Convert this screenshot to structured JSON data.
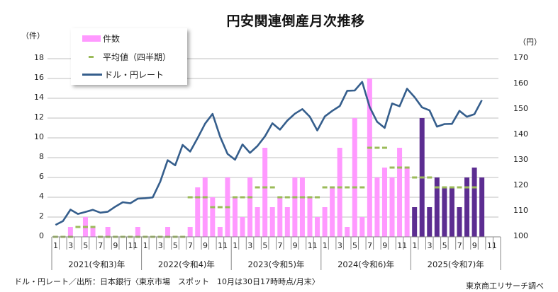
{
  "title": "円安関連倒産月次推移",
  "axes": {
    "left_unit": "（件）",
    "right_unit": "（円）",
    "left_ticks": [
      "0",
      "2",
      "4",
      "6",
      "8",
      "10",
      "12",
      "14",
      "16",
      "18"
    ],
    "right_ticks": [
      "100",
      "110",
      "120",
      "130",
      "140",
      "150",
      "160",
      "170"
    ]
  },
  "legend": {
    "items": [
      {
        "label": "件数",
        "kind": "bar",
        "color": "#ff99ff"
      },
      {
        "label": "平均値（四半期）",
        "kind": "dash",
        "color": "#9bbb59"
      },
      {
        "label": "ドル・円レート",
        "kind": "line",
        "color": "#355e8c"
      }
    ]
  },
  "x_axis": {
    "month_ticks": [
      "1",
      "3",
      "5",
      "7",
      "9",
      "11"
    ],
    "years": [
      {
        "label": "2021(令和3)年"
      },
      {
        "label": "2022(令和4)年"
      },
      {
        "label": "2023(令和5)年"
      },
      {
        "label": "2024(令和6)年"
      },
      {
        "label": "2025(令和7)年"
      }
    ]
  },
  "footer": {
    "source_note": "ドル・円レート／出所：日本銀行〈東京市場　スポット　10月は30日17時時点/月末〉",
    "credit": "東京商工リサーチ調べ"
  },
  "colors": {
    "bar_past": "#ff99ff",
    "bar_current_year": "#5c2d91",
    "avg_dash": "#9bbb59",
    "rate_line": "#355e8c",
    "grid": "#bfbfbf"
  },
  "chart_data": {
    "type": "bar",
    "title": "円安関連倒産月次推移",
    "xlabel": "",
    "ylabel": "（件）",
    "y2label": "（円）",
    "ylim": [
      0,
      18
    ],
    "y2lim": [
      100,
      170
    ],
    "grid": true,
    "legend_position": "upper-left",
    "categories": [
      "2021-01",
      "2021-02",
      "2021-03",
      "2021-04",
      "2021-05",
      "2021-06",
      "2021-07",
      "2021-08",
      "2021-09",
      "2021-10",
      "2021-11",
      "2021-12",
      "2022-01",
      "2022-02",
      "2022-03",
      "2022-04",
      "2022-05",
      "2022-06",
      "2022-07",
      "2022-08",
      "2022-09",
      "2022-10",
      "2022-11",
      "2022-12",
      "2023-01",
      "2023-02",
      "2023-03",
      "2023-04",
      "2023-05",
      "2023-06",
      "2023-07",
      "2023-08",
      "2023-09",
      "2023-10",
      "2023-11",
      "2023-12",
      "2024-01",
      "2024-02",
      "2024-03",
      "2024-04",
      "2024-05",
      "2024-06",
      "2024-07",
      "2024-08",
      "2024-09",
      "2024-10",
      "2024-11",
      "2024-12",
      "2025-01",
      "2025-02",
      "2025-03",
      "2025-04",
      "2025-05",
      "2025-06",
      "2025-07",
      "2025-08",
      "2025-09",
      "2025-10",
      "2025-11",
      "2025-12"
    ],
    "series": [
      {
        "name": "件数",
        "type": "bar",
        "axis": "left",
        "values": [
          0,
          0,
          1,
          0,
          2,
          1,
          0,
          1,
          0,
          0,
          0,
          1,
          0,
          0,
          0,
          1,
          0,
          0,
          1,
          5,
          6,
          4,
          1,
          6,
          4,
          2,
          6,
          3,
          9,
          3,
          4,
          3,
          6,
          6,
          4,
          2,
          3,
          5,
          9,
          1,
          12,
          2,
          16,
          6,
          7,
          6,
          9,
          7,
          3,
          12,
          3,
          6,
          5,
          5,
          3,
          6,
          7,
          6,
          null,
          null
        ]
      },
      {
        "name": "平均値（四半期）",
        "type": "step-dash",
        "axis": "left",
        "quarters": [
          "2021Q1",
          "2021Q2",
          "2021Q3",
          "2021Q4",
          "2022Q1",
          "2022Q2",
          "2022Q3",
          "2022Q4",
          "2023Q1",
          "2023Q2",
          "2023Q3",
          "2023Q4",
          "2024Q1",
          "2024Q2",
          "2024Q3",
          "2024Q4",
          "2025Q1",
          "2025Q2",
          "2025Q3"
        ],
        "values": [
          0,
          1,
          0,
          0,
          0,
          0,
          4,
          3,
          4,
          5,
          4,
          4,
          5,
          5,
          9,
          7,
          6,
          5,
          5
        ]
      },
      {
        "name": "ドル・円レート",
        "type": "line",
        "axis": "right",
        "values": [
          104.7,
          106.2,
          110.7,
          109.0,
          109.8,
          110.6,
          109.5,
          109.9,
          111.9,
          113.6,
          113.2,
          115.0,
          115.2,
          115.5,
          121.7,
          130.1,
          128.1,
          136.1,
          133.5,
          138.8,
          144.5,
          148.3,
          139.4,
          132.6,
          130.3,
          136.3,
          133.0,
          135.7,
          139.5,
          144.6,
          142.1,
          145.7,
          148.4,
          150.2,
          147.2,
          141.8,
          147.3,
          149.5,
          151.4,
          157.4,
          157.5,
          160.9,
          151.0,
          145.2,
          142.8,
          152.4,
          151.3,
          158.2,
          154.9,
          150.9,
          149.7,
          143.3,
          144.3,
          144.4,
          149.5,
          147.2,
          148.2,
          153.7,
          null,
          null
        ]
      }
    ]
  }
}
